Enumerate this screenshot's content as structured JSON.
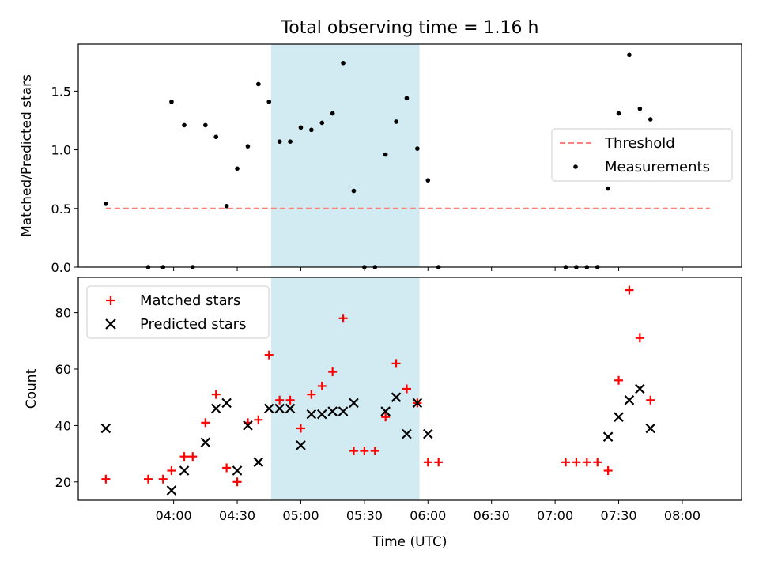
{
  "chart_data": [
    {
      "type": "scatter",
      "panel": "top",
      "title": "Total observing time = 1.16 h",
      "ylabel": "Matched/Predicted stars",
      "xlabel": "",
      "ylim": [
        0,
        1.9
      ],
      "xlim_minutes": [
        195,
        508
      ],
      "yticks": [
        0.0,
        0.5,
        1.0,
        1.5
      ],
      "ytick_labels": [
        "0.0",
        "0.5",
        "1.0",
        "1.5"
      ],
      "shaded_span_minutes": [
        286,
        356
      ],
      "shade_color": "#add8e6",
      "threshold": {
        "name": "Threshold",
        "y": 0.5,
        "x_range_minutes": [
          208,
          493
        ],
        "color": "#ff7f7f",
        "style": "dashed"
      },
      "legend": {
        "placement": "center-right",
        "entries": [
          "Threshold",
          "Measurements"
        ]
      },
      "series": [
        {
          "name": "Measurements",
          "color": "#000000",
          "marker": "dot",
          "points": [
            [
              208,
              0.54
            ],
            [
              228,
              0.0
            ],
            [
              235,
              0.0
            ],
            [
              239,
              1.41
            ],
            [
              245,
              1.21
            ],
            [
              249,
              0.0
            ],
            [
              255,
              1.21
            ],
            [
              260,
              1.11
            ],
            [
              265,
              0.52
            ],
            [
              270,
              0.84
            ],
            [
              275,
              1.03
            ],
            [
              280,
              1.56
            ],
            [
              285,
              1.41
            ],
            [
              290,
              1.07
            ],
            [
              295,
              1.07
            ],
            [
              300,
              1.19
            ],
            [
              305,
              1.17
            ],
            [
              310,
              1.23
            ],
            [
              315,
              1.31
            ],
            [
              320,
              1.74
            ],
            [
              325,
              0.65
            ],
            [
              330,
              0.0
            ],
            [
              335,
              0.0
            ],
            [
              340,
              0.96
            ],
            [
              345,
              1.24
            ],
            [
              350,
              1.44
            ],
            [
              355,
              1.01
            ],
            [
              360,
              0.74
            ],
            [
              365,
              0.0
            ],
            [
              425,
              0.0
            ],
            [
              430,
              0.0
            ],
            [
              435,
              0.0
            ],
            [
              440,
              0.0
            ],
            [
              445,
              0.67
            ],
            [
              450,
              1.31
            ],
            [
              455,
              1.81
            ],
            [
              460,
              1.35
            ],
            [
              465,
              1.26
            ]
          ]
        }
      ]
    },
    {
      "type": "scatter",
      "panel": "bottom",
      "ylabel": "Count",
      "xlabel": "Time (UTC)",
      "ylim": [
        13.5,
        92.5
      ],
      "xlim_minutes": [
        195,
        508
      ],
      "yticks": [
        20,
        40,
        60,
        80
      ],
      "ytick_labels": [
        "20",
        "40",
        "60",
        "80"
      ],
      "xticks_minutes": [
        240,
        270,
        300,
        330,
        360,
        390,
        420,
        450,
        480
      ],
      "xtick_labels": [
        "04:00",
        "04:30",
        "05:00",
        "05:30",
        "06:00",
        "06:30",
        "07:00",
        "07:30",
        "08:00"
      ],
      "shaded_span_minutes": [
        286,
        356
      ],
      "shade_color": "#add8e6",
      "legend": {
        "placement": "top-left",
        "entries": [
          "Matched stars",
          "Predicted stars"
        ]
      },
      "series": [
        {
          "name": "Matched stars",
          "color": "#ff0000",
          "marker": "plus",
          "points": [
            [
              208,
              21
            ],
            [
              228,
              21
            ],
            [
              235,
              21
            ],
            [
              239,
              24
            ],
            [
              245,
              29
            ],
            [
              249,
              29
            ],
            [
              255,
              41
            ],
            [
              260,
              51
            ],
            [
              265,
              25
            ],
            [
              270,
              20
            ],
            [
              275,
              41
            ],
            [
              280,
              42
            ],
            [
              285,
              65
            ],
            [
              290,
              49
            ],
            [
              295,
              49
            ],
            [
              300,
              39
            ],
            [
              305,
              51
            ],
            [
              310,
              54
            ],
            [
              315,
              59
            ],
            [
              320,
              78
            ],
            [
              325,
              31
            ],
            [
              330,
              31
            ],
            [
              335,
              31
            ],
            [
              340,
              43
            ],
            [
              345,
              62
            ],
            [
              350,
              53
            ],
            [
              355,
              48
            ],
            [
              360,
              27
            ],
            [
              365,
              27
            ],
            [
              425,
              27
            ],
            [
              430,
              27
            ],
            [
              435,
              27
            ],
            [
              440,
              27
            ],
            [
              445,
              24
            ],
            [
              450,
              56
            ],
            [
              455,
              88
            ],
            [
              460,
              71
            ],
            [
              465,
              49
            ]
          ]
        },
        {
          "name": "Predicted stars",
          "color": "#000000",
          "marker": "x",
          "points": [
            [
              208,
              39
            ],
            [
              239,
              17
            ],
            [
              245,
              24
            ],
            [
              255,
              34
            ],
            [
              260,
              46
            ],
            [
              265,
              48
            ],
            [
              270,
              24
            ],
            [
              275,
              40
            ],
            [
              280,
              27
            ],
            [
              285,
              46
            ],
            [
              290,
              46
            ],
            [
              295,
              46
            ],
            [
              300,
              33
            ],
            [
              305,
              44
            ],
            [
              310,
              44
            ],
            [
              315,
              45
            ],
            [
              320,
              45
            ],
            [
              325,
              48
            ],
            [
              340,
              45
            ],
            [
              345,
              50
            ],
            [
              350,
              37
            ],
            [
              355,
              48
            ],
            [
              360,
              37
            ],
            [
              445,
              36
            ],
            [
              450,
              43
            ],
            [
              455,
              49
            ],
            [
              460,
              53
            ],
            [
              465,
              39
            ]
          ]
        }
      ]
    }
  ]
}
